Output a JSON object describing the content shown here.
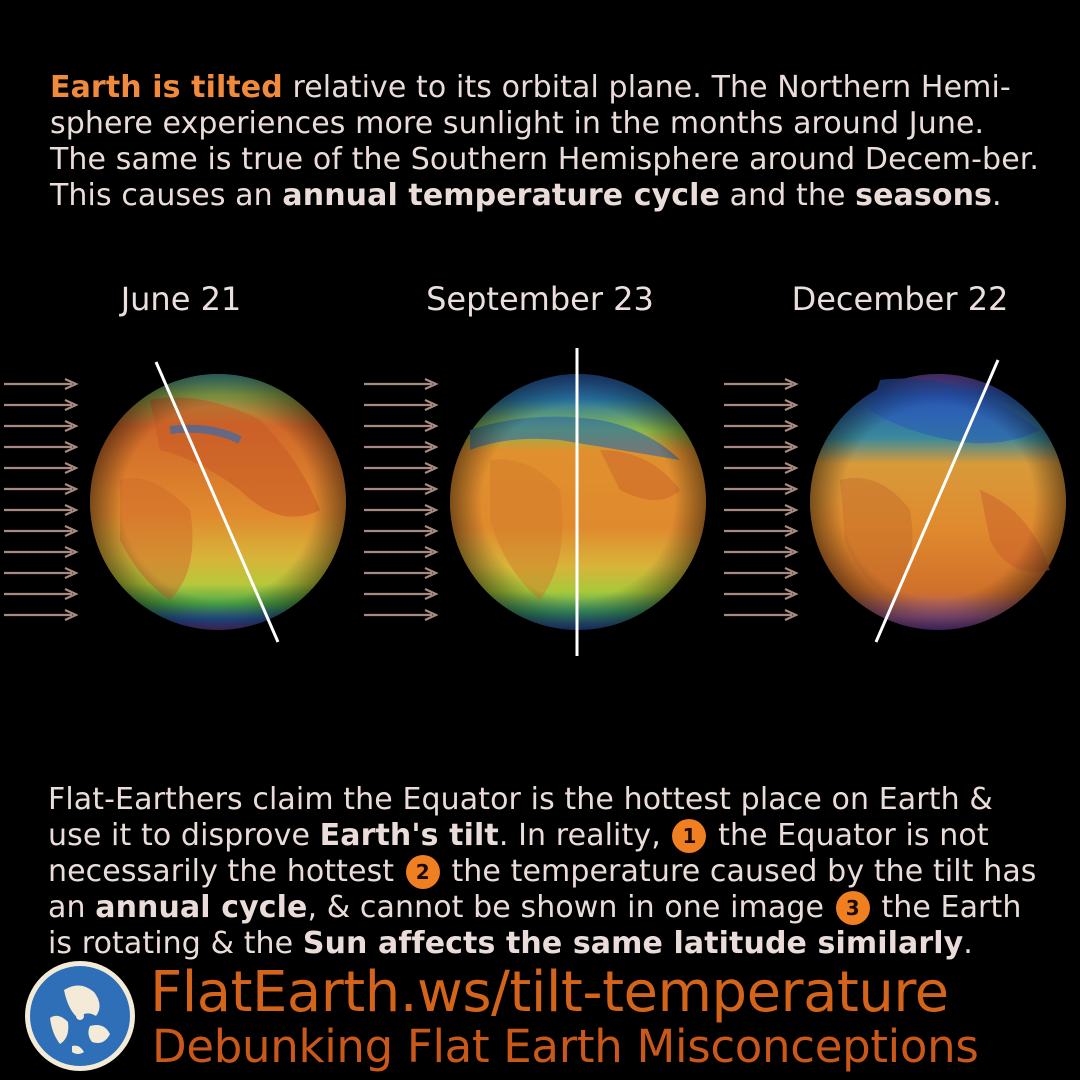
{
  "intro": {
    "highlight": "Earth is tilted",
    "text1": " relative to its orbital plane. The Northern Hemi-sphere experiences more sunlight in the months around June. The same is true of the Southern Hemisphere around Decem-ber. This causes an ",
    "bold1": "annual temperature cycle",
    "text2": " and the ",
    "bold2": "seasons",
    "text3": "."
  },
  "dates": [
    "June 21",
    "September 23",
    "December 22"
  ],
  "claim": {
    "text1": "Flat-Earthers claim the Equator is the hottest place on Earth & use it to disprove ",
    "bold1": "Earth's tilt",
    "text2": ". In reality, ",
    "n1": "1",
    "text3": " the Equator is not necessarily the hottest ",
    "n2": "2",
    "text4": " the temperature caused by the tilt has an ",
    "bold2": "annual cycle",
    "text5": ", & cannot be shown in one image ",
    "n3": "3",
    "text6": " the Earth is rotating & the ",
    "bold3": "Sun affects the same latitude similarly",
    "text7": "."
  },
  "footer": {
    "url": "FlatEarth.ws/tilt-temperature",
    "tagline": "Debunking Flat Earth Misconceptions"
  },
  "icons": {
    "sunlight": "sunlight-arrow-icon",
    "logo": "flat-earth-logo-icon"
  },
  "colors": {
    "accent": "#f08a3c",
    "url": "#d4641a",
    "tagline": "#c9581a",
    "arrow": "#a88a82"
  }
}
